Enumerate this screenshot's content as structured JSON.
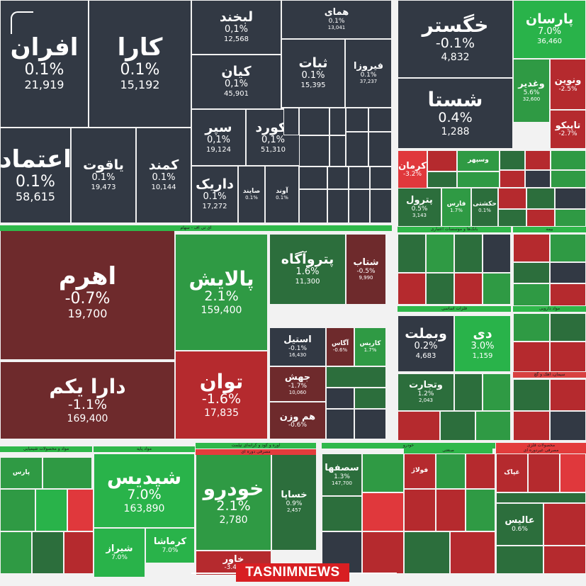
{
  "colors": {
    "dark": "#323944",
    "darkred": "#6e2a2c",
    "red": "#b52a2e",
    "brightred": "#e0383c",
    "green": "#2f9a44",
    "brightgreen": "#29b34a",
    "dimgreen": "#2c6e3c"
  },
  "chart_data": {
    "type": "treemap",
    "title": "",
    "watermark": "TASNIMNEWS",
    "sector_labels": [
      "ای تی اف - سهام",
      "فلزات اساسی",
      "مواد دارویی",
      "بانک‌ها و موسسات اعتباری",
      "بیمه",
      "سیمان، آهک و گچ",
      "مواد و محصولات شیمیایی",
      "مواد پایه",
      "اوره و کود و کرانه‌ای تیلمت",
      "مصرفی دوره ای",
      "خودرو",
      "صنعتی",
      "محصولات فلزی",
      "مصرفی غیردوره ای"
    ],
    "tiles": [
      {
        "name": "افران",
        "change": "0.1%",
        "price": "21,919",
        "color": "dark",
        "size": "xl"
      },
      {
        "name": "کارا",
        "change": "0.1%",
        "price": "15,192",
        "color": "dark",
        "size": "xl"
      },
      {
        "name": "لبخند",
        "change": "0,1%",
        "price": "12,568",
        "color": "dark",
        "size": "m"
      },
      {
        "name": "همای",
        "change": "0.1%",
        "price": "13,041",
        "color": "dark",
        "size": "s"
      },
      {
        "name": "کیان",
        "change": "0,1%",
        "price": "45,901",
        "color": "dark",
        "size": "m"
      },
      {
        "name": "ثبات",
        "change": "0.1%",
        "price": "15,395",
        "color": "dark",
        "size": "m"
      },
      {
        "name": "فیروزا",
        "change": "0.1%",
        "price": "37,237",
        "color": "dark",
        "size": "s"
      },
      {
        "name": "اعتماد",
        "change": "0.1%",
        "price": "58,615",
        "color": "dark",
        "size": "xl"
      },
      {
        "name": "یاقوت",
        "change": "0.1%",
        "price": "19,473",
        "color": "dark",
        "size": "m"
      },
      {
        "name": "کمند",
        "change": "0.1%",
        "price": "10,144",
        "color": "dark",
        "size": "m"
      },
      {
        "name": "سپر",
        "change": "0,1%",
        "price": "19,124",
        "color": "dark",
        "size": "m"
      },
      {
        "name": "آکورد",
        "change": "0,1%",
        "price": "51,310",
        "color": "dark",
        "size": "m"
      },
      {
        "name": "داریک",
        "change": "0.1%",
        "price": "17,272",
        "color": "dark",
        "size": "m"
      },
      {
        "name": "صایند",
        "change": "0.1%",
        "price": "",
        "color": "dark",
        "size": "xs"
      },
      {
        "name": "آوند",
        "change": "0.1%",
        "price": "",
        "color": "dark",
        "size": "xs"
      },
      {
        "name": "خگستر",
        "change": "-0.1%",
        "price": "4,832",
        "color": "dark",
        "size": "l"
      },
      {
        "name": "شستا",
        "change": "0.4%",
        "price": "1,288",
        "color": "dark",
        "size": "l"
      },
      {
        "name": "پارسان",
        "change": "7.0%",
        "price": "36,460",
        "color": "brightgreen",
        "size": "m"
      },
      {
        "name": "ونوين",
        "change": "-2.5%",
        "price": "",
        "color": "red",
        "size": "s"
      },
      {
        "name": "وغدير",
        "change": "5.6%",
        "price": "32,600",
        "color": "green",
        "size": "s"
      },
      {
        "name": "تاپيكو",
        "change": "-2.7%",
        "price": "",
        "color": "red",
        "size": "s"
      },
      {
        "name": "اهرم",
        "change": "-0.7%",
        "price": "19,700",
        "color": "darkred",
        "size": "xl"
      },
      {
        "name": "پالایش",
        "change": "2.1%",
        "price": "159,400",
        "color": "green",
        "size": "l"
      },
      {
        "name": "پتروآگاه",
        "change": "1.6%",
        "price": "11,300",
        "color": "dimgreen",
        "size": "m"
      },
      {
        "name": "شتاب",
        "change": "-0.5%",
        "price": "9,990",
        "color": "darkred",
        "size": "s"
      },
      {
        "name": "دارا یکم",
        "change": "-1.1%",
        "price": "169,400",
        "color": "darkred",
        "size": "l"
      },
      {
        "name": "توان",
        "change": "-1.6%",
        "price": "17,835",
        "color": "red",
        "size": "l"
      },
      {
        "name": "استیل",
        "change": "-0.1%",
        "price": "16,430",
        "color": "dark",
        "size": "s"
      },
      {
        "name": "آگاس",
        "change": "-0.6%",
        "price": "",
        "color": "darkred",
        "size": "xs"
      },
      {
        "name": "کاریس",
        "change": "1.7%",
        "price": "",
        "color": "green",
        "size": "xs"
      },
      {
        "name": "جهش",
        "change": "-1.7%",
        "price": "10,060",
        "color": "darkred",
        "size": "s"
      },
      {
        "name": "هم وزن",
        "change": "-0.6%",
        "price": "",
        "color": "darkred",
        "size": "s"
      },
      {
        "name": "کرمان",
        "change": "-3.2%",
        "price": "",
        "color": "brightred",
        "size": "s"
      },
      {
        "name": "وسپهر",
        "change": "",
        "price": "",
        "color": "green",
        "size": "xs"
      },
      {
        "name": "پترول",
        "change": "0.5%",
        "price": "3,143",
        "color": "dimgreen",
        "size": "s"
      },
      {
        "name": "فارس",
        "change": "1.7%",
        "price": "",
        "color": "green",
        "size": "xs"
      },
      {
        "name": "حکشتی",
        "change": "0.1%",
        "price": "",
        "color": "dimgreen",
        "size": "xs"
      },
      {
        "name": "وبملت",
        "change": "0.2%",
        "price": "4,683",
        "color": "dark",
        "size": "m"
      },
      {
        "name": "دی",
        "change": "3.0%",
        "price": "1,159",
        "color": "brightgreen",
        "size": "m"
      },
      {
        "name": "وتجارت",
        "change": "1.2%",
        "price": "2,043",
        "color": "dimgreen",
        "size": "s"
      },
      {
        "name": "پارس",
        "change": "",
        "price": "",
        "color": "green",
        "size": "xs"
      },
      {
        "name": "شپدیس",
        "change": "7.0%",
        "price": "163,890",
        "color": "brightgreen",
        "size": "l"
      },
      {
        "name": "کرماشا",
        "change": "7.0%",
        "price": "",
        "color": "brightgreen",
        "size": "s"
      },
      {
        "name": "شیراز",
        "change": "7.0%",
        "price": "",
        "color": "brightgreen",
        "size": "s"
      },
      {
        "name": "خودرو",
        "change": "2.1%",
        "price": "2,780",
        "color": "green",
        "size": "l"
      },
      {
        "name": "خساپا",
        "change": "0.9%",
        "price": "2,457",
        "color": "dimgreen",
        "size": "s"
      },
      {
        "name": "خاور",
        "change": "-3.4%",
        "price": "",
        "color": "red",
        "size": "s"
      },
      {
        "name": "سصفها",
        "change": "1.3%",
        "price": "147,700",
        "color": "dimgreen",
        "size": "s"
      },
      {
        "name": "فولاژ",
        "change": "",
        "price": "",
        "color": "red",
        "size": "xs"
      },
      {
        "name": "عالیس",
        "change": "0.6%",
        "price": "",
        "color": "dimgreen",
        "size": "s"
      },
      {
        "name": "غپاک",
        "change": "",
        "price": "",
        "color": "red",
        "size": "xs"
      }
    ]
  }
}
